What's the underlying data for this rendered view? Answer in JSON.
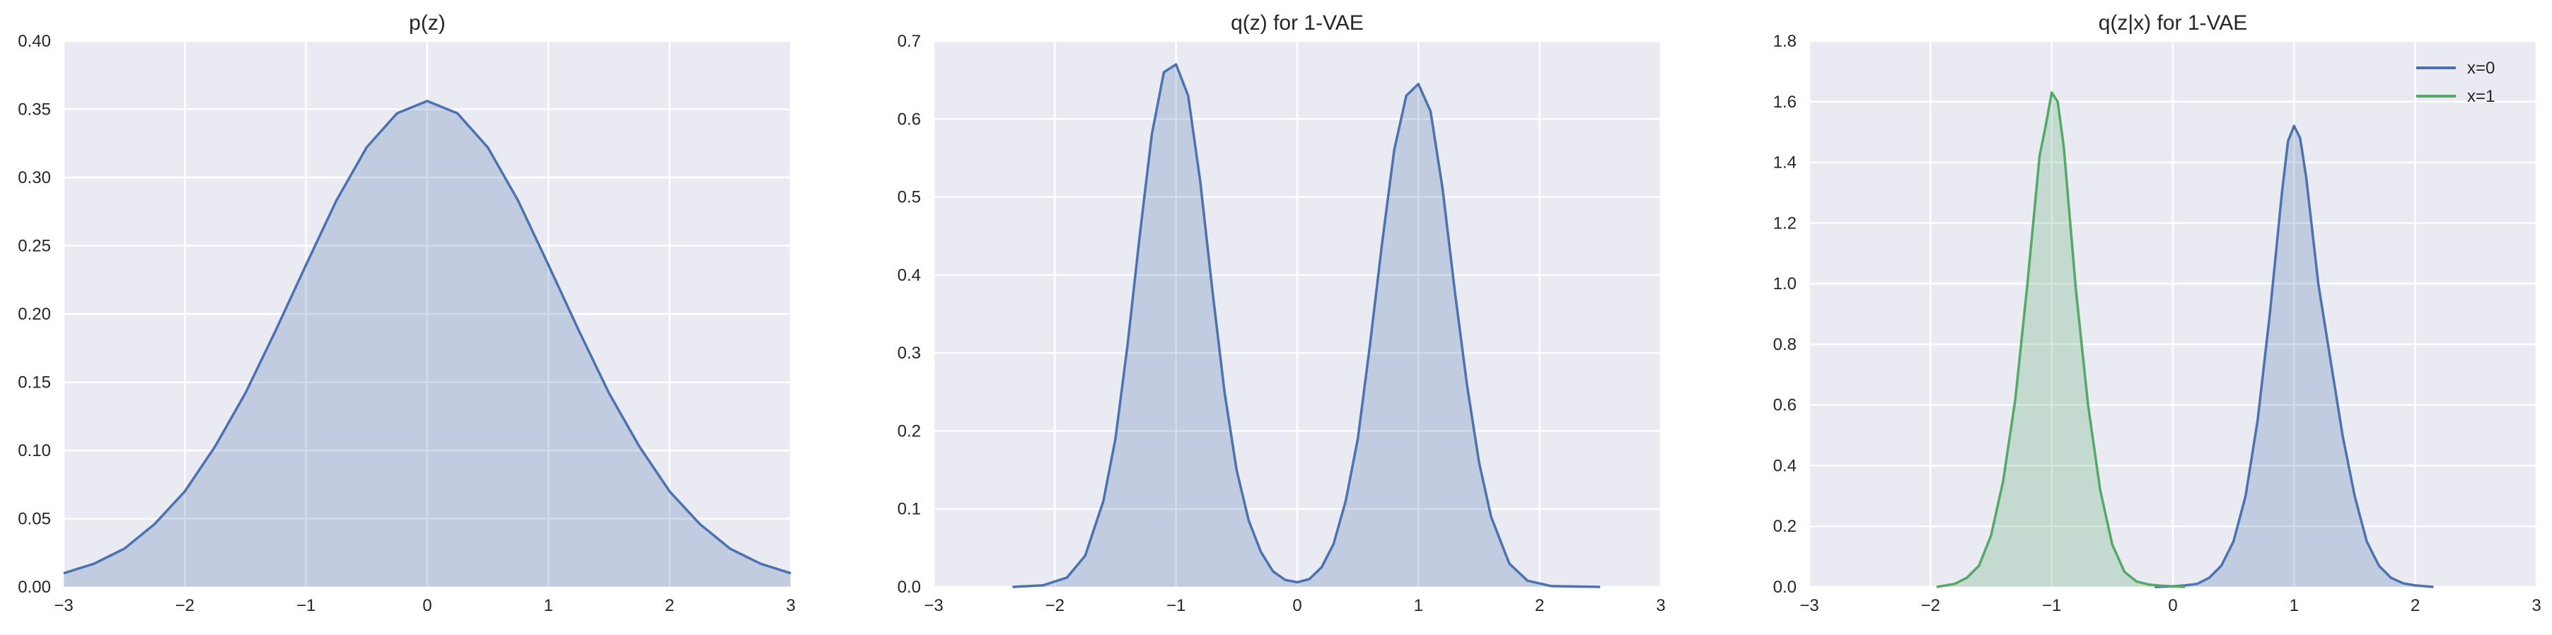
{
  "chart_data": [
    {
      "type": "area",
      "title": "p(z)",
      "xlabel": "",
      "ylabel": "",
      "xlim": [
        -3,
        3
      ],
      "ylim": [
        0,
        0.4
      ],
      "xticks": [
        "−3",
        "−2",
        "−1",
        "0",
        "1",
        "2",
        "3"
      ],
      "yticks": [
        "0.00",
        "0.05",
        "0.10",
        "0.15",
        "0.20",
        "0.25",
        "0.30",
        "0.35",
        "0.40"
      ],
      "grid": true,
      "legend": null,
      "series": [
        {
          "color": "#4c72b0",
          "fill": true,
          "x": [
            -3.0,
            -2.75,
            -2.5,
            -2.25,
            -2.0,
            -1.75,
            -1.5,
            -1.25,
            -1.0,
            -0.75,
            -0.5,
            -0.25,
            0.0,
            0.25,
            0.5,
            0.75,
            1.0,
            1.25,
            1.5,
            1.75,
            2.0,
            2.25,
            2.5,
            2.75,
            3.0
          ],
          "y": [
            0.01,
            0.017,
            0.028,
            0.046,
            0.07,
            0.103,
            0.142,
            0.188,
            0.236,
            0.283,
            0.322,
            0.347,
            0.356,
            0.347,
            0.322,
            0.283,
            0.236,
            0.188,
            0.142,
            0.103,
            0.07,
            0.046,
            0.028,
            0.017,
            0.01
          ]
        }
      ]
    },
    {
      "type": "area",
      "title": "q(z) for 1-VAE",
      "xlabel": "",
      "ylabel": "",
      "xlim": [
        -3,
        3
      ],
      "ylim": [
        0,
        0.7
      ],
      "xticks": [
        "−3",
        "−2",
        "−1",
        "0",
        "1",
        "2",
        "3"
      ],
      "yticks": [
        "0.0",
        "0.1",
        "0.2",
        "0.3",
        "0.4",
        "0.5",
        "0.6",
        "0.7"
      ],
      "grid": true,
      "legend": null,
      "series": [
        {
          "color": "#4c72b0",
          "fill": true,
          "x": [
            -2.35,
            -2.1,
            -1.9,
            -1.75,
            -1.6,
            -1.5,
            -1.4,
            -1.3,
            -1.2,
            -1.1,
            -1.0,
            -0.9,
            -0.8,
            -0.7,
            -0.6,
            -0.5,
            -0.4,
            -0.3,
            -0.2,
            -0.1,
            0.0,
            0.1,
            0.2,
            0.3,
            0.4,
            0.5,
            0.6,
            0.7,
            0.8,
            0.9,
            1.0,
            1.1,
            1.2,
            1.3,
            1.4,
            1.5,
            1.6,
            1.75,
            1.9,
            2.1,
            2.5
          ],
          "y": [
            0.0,
            0.002,
            0.012,
            0.04,
            0.11,
            0.19,
            0.31,
            0.45,
            0.58,
            0.66,
            0.67,
            0.63,
            0.52,
            0.38,
            0.25,
            0.15,
            0.085,
            0.045,
            0.02,
            0.009,
            0.006,
            0.01,
            0.025,
            0.055,
            0.11,
            0.19,
            0.31,
            0.44,
            0.56,
            0.63,
            0.645,
            0.61,
            0.51,
            0.38,
            0.26,
            0.16,
            0.09,
            0.03,
            0.008,
            0.001,
            0.0
          ]
        }
      ]
    },
    {
      "type": "area",
      "title": "q(z|x) for 1-VAE",
      "xlabel": "",
      "ylabel": "",
      "xlim": [
        -3,
        3
      ],
      "ylim": [
        0,
        1.8
      ],
      "xticks": [
        "−3",
        "−2",
        "−1",
        "0",
        "1",
        "2",
        "3"
      ],
      "yticks": [
        "0.0",
        "0.2",
        "0.4",
        "0.6",
        "0.8",
        "1.0",
        "1.2",
        "1.4",
        "1.6",
        "1.8"
      ],
      "grid": true,
      "legend": "top-right",
      "series": [
        {
          "name": "x=0",
          "color": "#4c72b0",
          "fill": true,
          "x": [
            -0.15,
            0.0,
            0.1,
            0.2,
            0.3,
            0.4,
            0.5,
            0.6,
            0.7,
            0.8,
            0.9,
            0.95,
            1.0,
            1.05,
            1.1,
            1.2,
            1.3,
            1.4,
            1.5,
            1.6,
            1.7,
            1.8,
            1.9,
            2.0,
            2.15
          ],
          "y": [
            0.0,
            0.002,
            0.005,
            0.01,
            0.03,
            0.07,
            0.15,
            0.3,
            0.55,
            0.9,
            1.3,
            1.47,
            1.52,
            1.48,
            1.35,
            1.0,
            0.75,
            0.5,
            0.3,
            0.15,
            0.07,
            0.03,
            0.012,
            0.005,
            0.0
          ]
        },
        {
          "name": "x=1",
          "color": "#55a868",
          "fill": true,
          "x": [
            -1.95,
            -1.8,
            -1.7,
            -1.6,
            -1.5,
            -1.4,
            -1.3,
            -1.2,
            -1.1,
            -1.05,
            -1.0,
            -0.95,
            -0.9,
            -0.8,
            -0.7,
            -0.6,
            -0.5,
            -0.4,
            -0.3,
            -0.2,
            -0.1,
            0.0,
            0.1
          ],
          "y": [
            0.0,
            0.01,
            0.03,
            0.07,
            0.17,
            0.35,
            0.62,
            1.0,
            1.42,
            1.52,
            1.63,
            1.6,
            1.45,
            0.98,
            0.6,
            0.32,
            0.14,
            0.05,
            0.018,
            0.008,
            0.004,
            0.002,
            0.0
          ]
        }
      ]
    }
  ]
}
